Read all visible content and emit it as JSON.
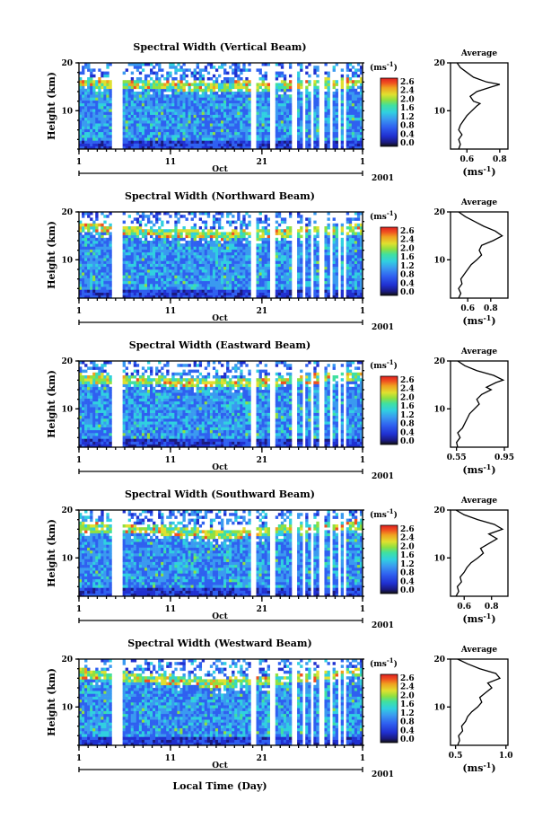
{
  "chart_data": [
    {
      "type": "heatmap",
      "title": "Spectral Width (Vertical Beam)",
      "ylabel": "Height (km)",
      "ylim": [
        2,
        20
      ],
      "yticks": [
        "10",
        "20"
      ],
      "xticks": [
        "1",
        "11",
        "21",
        "1"
      ],
      "month_label": "Oct",
      "year_label": "2001",
      "colorbar": {
        "unit": "(ms",
        "exp": "-1",
        "ticks": [
          "2.6",
          "2.4",
          "2.0",
          "1.6",
          "1.2",
          "0.8",
          "0.4",
          "0.0"
        ]
      },
      "average": {
        "title": "Average",
        "yticks": [
          "10",
          "20"
        ],
        "xticks": [
          "0.6",
          "0.8"
        ],
        "xlabel": "(ms",
        "xlabel_exp": "-1",
        "xlim": [
          0.5,
          0.85
        ],
        "profile": [
          [
            0.55,
            2
          ],
          [
            0.56,
            3
          ],
          [
            0.55,
            4
          ],
          [
            0.57,
            5
          ],
          [
            0.55,
            6
          ],
          [
            0.56,
            7
          ],
          [
            0.58,
            8
          ],
          [
            0.6,
            9
          ],
          [
            0.63,
            10
          ],
          [
            0.66,
            11
          ],
          [
            0.68,
            11.5
          ],
          [
            0.64,
            12
          ],
          [
            0.62,
            13
          ],
          [
            0.66,
            14
          ],
          [
            0.75,
            15
          ],
          [
            0.8,
            15.5
          ],
          [
            0.72,
            16
          ],
          [
            0.64,
            17
          ],
          [
            0.6,
            18
          ],
          [
            0.56,
            19
          ],
          [
            0.54,
            20
          ]
        ]
      },
      "data_gaps": [
        [
          4.5,
          5.8
        ],
        [
          19.8,
          20.5
        ],
        [
          21.8,
          22.4
        ],
        [
          24.3,
          24.8
        ],
        [
          25.3,
          25.7
        ],
        [
          26.2,
          26.6
        ],
        [
          27.3,
          27.7
        ],
        [
          28.4,
          28.8
        ],
        [
          29.2,
          29.6
        ],
        [
          29.9,
          30.2
        ]
      ],
      "layer_height": [
        16,
        15.5,
        15,
        15.5,
        16
      ]
    },
    {
      "type": "heatmap",
      "title": "Spectral Width (Northward Beam)",
      "ylabel": "Height (km)",
      "ylim": [
        2,
        20
      ],
      "yticks": [
        "10",
        "20"
      ],
      "xticks": [
        "1",
        "11",
        "21",
        "1"
      ],
      "month_label": "Oct",
      "year_label": "2001",
      "colorbar": {
        "unit": "(ms",
        "exp": "-1",
        "ticks": [
          "2.6",
          "2.4",
          "2.0",
          "1.6",
          "1.2",
          "0.8",
          "0.4",
          "0.0"
        ]
      },
      "average": {
        "title": "Average",
        "yticks": [
          "10",
          "20"
        ],
        "xticks": [
          "0.6",
          "0.8"
        ],
        "xlabel": "(ms",
        "xlabel_exp": "-1",
        "xlim": [
          0.45,
          0.95
        ],
        "profile": [
          [
            0.52,
            2
          ],
          [
            0.54,
            3
          ],
          [
            0.52,
            4
          ],
          [
            0.55,
            5
          ],
          [
            0.54,
            6
          ],
          [
            0.57,
            7
          ],
          [
            0.6,
            8
          ],
          [
            0.63,
            9
          ],
          [
            0.68,
            10
          ],
          [
            0.72,
            11
          ],
          [
            0.7,
            12
          ],
          [
            0.72,
            13
          ],
          [
            0.82,
            14
          ],
          [
            0.9,
            15
          ],
          [
            0.84,
            16
          ],
          [
            0.74,
            17
          ],
          [
            0.66,
            18
          ],
          [
            0.58,
            19
          ],
          [
            0.52,
            20
          ]
        ]
      },
      "data_gaps": [
        [
          4.5,
          5.8
        ],
        [
          19.8,
          20.5
        ],
        [
          21.8,
          22.4
        ],
        [
          24.3,
          24.8
        ],
        [
          25.3,
          25.7
        ],
        [
          26.2,
          26.6
        ],
        [
          27.3,
          27.7
        ],
        [
          28.4,
          28.8
        ],
        [
          29.2,
          29.6
        ],
        [
          29.9,
          30.2
        ]
      ],
      "layer_height": [
        17,
        16,
        15.2,
        15.8,
        16.5
      ]
    },
    {
      "type": "heatmap",
      "title": "Spectral Width (Eastward Beam)",
      "ylabel": "Height (km)",
      "ylim": [
        2,
        20
      ],
      "yticks": [
        "10",
        "20"
      ],
      "xticks": [
        "1",
        "11",
        "21",
        "1"
      ],
      "month_label": "Oct",
      "year_label": "2001",
      "colorbar": {
        "unit": "(ms",
        "exp": "-1",
        "ticks": [
          "2.6",
          "2.4",
          "2.0",
          "1.6",
          "1.2",
          "0.8",
          "0.4",
          "0.0"
        ]
      },
      "average": {
        "title": "Average",
        "yticks": [
          "10",
          "20"
        ],
        "xticks": [
          "0.55",
          "0.95"
        ],
        "xlabel": "(ms",
        "xlabel_exp": "-1",
        "xlim": [
          0.5,
          0.98
        ],
        "profile": [
          [
            0.56,
            2
          ],
          [
            0.55,
            3
          ],
          [
            0.58,
            4
          ],
          [
            0.56,
            5
          ],
          [
            0.6,
            6
          ],
          [
            0.62,
            7
          ],
          [
            0.64,
            8
          ],
          [
            0.66,
            9
          ],
          [
            0.7,
            10
          ],
          [
            0.74,
            11
          ],
          [
            0.72,
            12
          ],
          [
            0.76,
            13
          ],
          [
            0.84,
            14
          ],
          [
            0.8,
            14.5
          ],
          [
            0.88,
            15.5
          ],
          [
            0.94,
            16
          ],
          [
            0.86,
            17
          ],
          [
            0.72,
            18
          ],
          [
            0.62,
            19
          ],
          [
            0.56,
            20
          ]
        ]
      },
      "data_gaps": [
        [
          4.5,
          5.8
        ],
        [
          19.8,
          20.5
        ],
        [
          21.8,
          22.4
        ],
        [
          24.3,
          24.8
        ],
        [
          25.3,
          25.7
        ],
        [
          26.2,
          26.6
        ],
        [
          27.3,
          27.7
        ],
        [
          28.4,
          28.8
        ],
        [
          29.2,
          29.6
        ],
        [
          29.9,
          30.2
        ]
      ],
      "layer_height": [
        16.5,
        16,
        15.3,
        16,
        17
      ]
    },
    {
      "type": "heatmap",
      "title": "Spectral Width (Southward Beam)",
      "ylabel": "Height (km)",
      "ylim": [
        2,
        20
      ],
      "yticks": [
        "10",
        "20"
      ],
      "xticks": [
        "1",
        "11",
        "21",
        "1"
      ],
      "month_label": "Oct",
      "year_label": "2001",
      "colorbar": {
        "unit": "(ms",
        "exp": "-1",
        "ticks": [
          "2.6",
          "2.4",
          "2.0",
          "1.6",
          "1.2",
          "0.8",
          "0.4",
          "0.0"
        ]
      },
      "average": {
        "title": "Average",
        "yticks": [
          "10",
          "20"
        ],
        "xticks": [
          "0.6",
          "0.8"
        ],
        "xlabel": "(ms",
        "xlabel_exp": "-1",
        "xlim": [
          0.5,
          0.92
        ],
        "profile": [
          [
            0.54,
            2
          ],
          [
            0.56,
            3
          ],
          [
            0.55,
            4
          ],
          [
            0.58,
            5
          ],
          [
            0.57,
            6
          ],
          [
            0.6,
            7
          ],
          [
            0.62,
            8
          ],
          [
            0.65,
            9
          ],
          [
            0.7,
            10
          ],
          [
            0.74,
            11
          ],
          [
            0.72,
            12
          ],
          [
            0.78,
            13
          ],
          [
            0.84,
            14
          ],
          [
            0.78,
            15
          ],
          [
            0.88,
            16
          ],
          [
            0.82,
            17
          ],
          [
            0.7,
            18
          ],
          [
            0.6,
            19
          ],
          [
            0.54,
            20
          ]
        ]
      },
      "data_gaps": [
        [
          4.5,
          5.8
        ],
        [
          19.8,
          20.5
        ],
        [
          21.8,
          22.4
        ],
        [
          24.3,
          24.8
        ],
        [
          25.3,
          25.7
        ],
        [
          26.2,
          26.6
        ],
        [
          27.3,
          27.7
        ],
        [
          28.4,
          28.8
        ],
        [
          29.2,
          29.6
        ],
        [
          29.9,
          30.2
        ]
      ],
      "layer_height": [
        16.5,
        16,
        15,
        16,
        17
      ]
    },
    {
      "type": "heatmap",
      "title": "Spectral Width (Westward Beam)",
      "ylabel": "Height (km)",
      "ylim": [
        2,
        20
      ],
      "yticks": [
        "10",
        "20"
      ],
      "xticks": [
        "1",
        "11",
        "21",
        "1"
      ],
      "month_label": "Oct",
      "year_label": "2001",
      "xlabel": "Local Time (Day)",
      "colorbar": {
        "unit": "(ms",
        "exp": "-1",
        "ticks": [
          "2.6",
          "2.4",
          "2.0",
          "1.6",
          "1.2",
          "0.8",
          "0.4",
          "0.0"
        ]
      },
      "average": {
        "title": "Average",
        "yticks": [
          "10",
          "20"
        ],
        "xticks": [
          "0.5",
          "1.0"
        ],
        "xlabel": "(ms",
        "xlabel_exp": "-1",
        "xlim": [
          0.45,
          1.02
        ],
        "profile": [
          [
            0.52,
            2
          ],
          [
            0.54,
            3
          ],
          [
            0.53,
            4
          ],
          [
            0.57,
            5
          ],
          [
            0.56,
            6
          ],
          [
            0.6,
            7
          ],
          [
            0.62,
            8
          ],
          [
            0.66,
            9
          ],
          [
            0.72,
            10
          ],
          [
            0.76,
            11
          ],
          [
            0.74,
            12
          ],
          [
            0.8,
            13
          ],
          [
            0.86,
            14
          ],
          [
            0.82,
            15
          ],
          [
            0.94,
            16
          ],
          [
            0.9,
            17
          ],
          [
            0.74,
            18
          ],
          [
            0.62,
            19
          ],
          [
            0.52,
            20
          ]
        ]
      },
      "data_gaps": [
        [
          4.5,
          5.8
        ],
        [
          19.8,
          20.5
        ],
        [
          21.8,
          22.4
        ],
        [
          24.3,
          24.8
        ],
        [
          25.3,
          25.7
        ],
        [
          26.2,
          26.6
        ],
        [
          27.3,
          27.7
        ],
        [
          28.4,
          28.8
        ],
        [
          29.2,
          29.6
        ],
        [
          29.9,
          30.2
        ]
      ],
      "layer_height": [
        17,
        16,
        15,
        16,
        17.5
      ]
    }
  ],
  "colors": {
    "scale": [
      "#1a1a80",
      "#2030d0",
      "#2f60f0",
      "#3a9af0",
      "#30d0e0",
      "#40e0a0",
      "#90e040",
      "#e0e030",
      "#f0a020",
      "#f05020",
      "#e02020"
    ]
  }
}
